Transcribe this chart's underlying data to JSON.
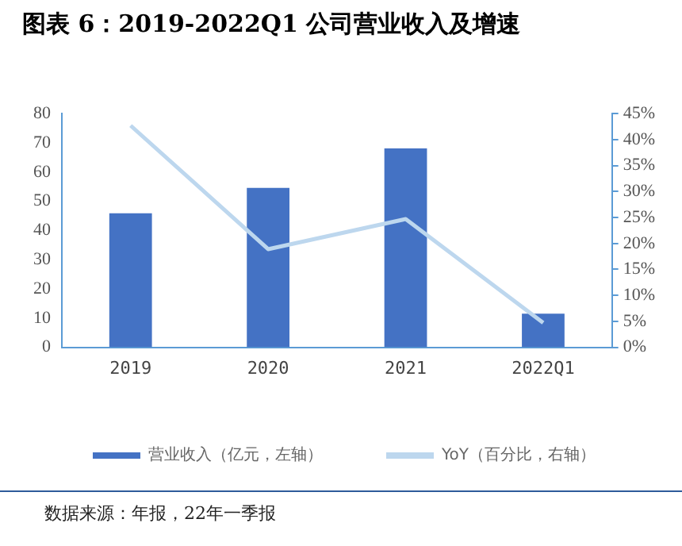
{
  "chart_data": {
    "type": "bar",
    "title": "图表 6：2019-2022Q1 公司营业收入及增速",
    "categories": [
      "2019",
      "2020",
      "2021",
      "2022Q1"
    ],
    "series": [
      {
        "name": "营业收入（亿元，左轴）",
        "color": "#4472c4",
        "values": [
          45.9,
          54.6,
          68.1,
          11.5
        ]
      },
      {
        "name": "YoY（百分比，右轴）",
        "type": "line",
        "color": "#bdd7ee",
        "axis": "y2",
        "values": [
          42.7,
          18.9,
          24.7,
          4.7
        ]
      }
    ],
    "ylim": [
      0,
      80
    ],
    "yticks": [
      0,
      10,
      20,
      30,
      40,
      50,
      60,
      70,
      80
    ],
    "y2lim": [
      0,
      45
    ],
    "y2ticks": [
      {
        "value": 0,
        "label": "0%"
      },
      {
        "value": 5,
        "label": "5%"
      },
      {
        "value": 10,
        "label": "10%"
      },
      {
        "value": 15,
        "label": "15%"
      },
      {
        "value": 20,
        "label": "20%"
      },
      {
        "value": 25,
        "label": "25%"
      },
      {
        "value": 30,
        "label": "30%"
      },
      {
        "value": 35,
        "label": "35%"
      },
      {
        "value": 40,
        "label": "40%"
      },
      {
        "value": 45,
        "label": "45%"
      }
    ],
    "grid": false,
    "legend": "bottom",
    "marker": "none",
    "annotations": [
      "数据来源：年报，22年一季报"
    ]
  }
}
